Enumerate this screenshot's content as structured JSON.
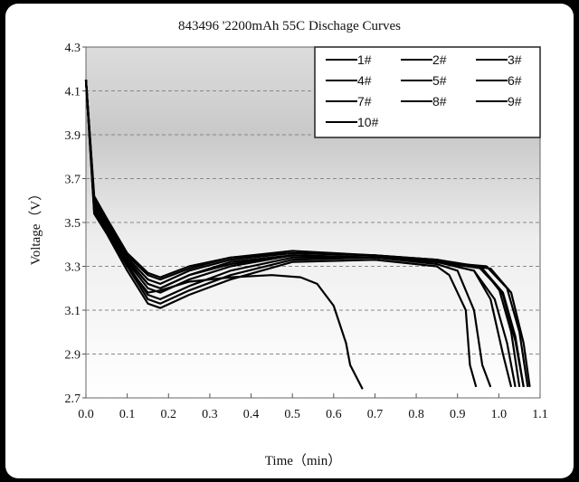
{
  "chart_data": {
    "type": "line",
    "title": "843496 '2200mAh 55C Dischage Curves",
    "xlabel": "Time（min）",
    "ylabel": "Voltage（V）",
    "xlim": [
      0,
      1.1
    ],
    "ylim": [
      2.7,
      4.3
    ],
    "xticks": [
      "0.0",
      "0.1",
      "0.2",
      "0.3",
      "0.4",
      "0.5",
      "0.6",
      "0.7",
      "0.8",
      "0.9",
      "1.0",
      "1.1"
    ],
    "yticks": [
      "2.7",
      "2.9",
      "3.1",
      "3.3",
      "3.5",
      "3.7",
      "3.9",
      "4.1",
      "4.3"
    ],
    "grid": "horizontal dashed",
    "legend_placement": "top-right",
    "line_color": "#000000",
    "series": [
      {
        "name": "1#",
        "points": [
          [
            0,
            4.15
          ],
          [
            0.02,
            3.62
          ],
          [
            0.05,
            3.52
          ],
          [
            0.1,
            3.36
          ],
          [
            0.15,
            3.27
          ],
          [
            0.18,
            3.25
          ],
          [
            0.25,
            3.3
          ],
          [
            0.35,
            3.34
          ],
          [
            0.5,
            3.37
          ],
          [
            0.7,
            3.35
          ],
          [
            0.85,
            3.33
          ],
          [
            0.95,
            3.3
          ],
          [
            1.0,
            3.2
          ],
          [
            1.03,
            3.0
          ],
          [
            1.05,
            2.75
          ]
        ]
      },
      {
        "name": "2#",
        "points": [
          [
            0,
            4.15
          ],
          [
            0.02,
            3.6
          ],
          [
            0.05,
            3.5
          ],
          [
            0.1,
            3.34
          ],
          [
            0.15,
            3.24
          ],
          [
            0.18,
            3.22
          ],
          [
            0.25,
            3.28
          ],
          [
            0.35,
            3.33
          ],
          [
            0.5,
            3.36
          ],
          [
            0.7,
            3.35
          ],
          [
            0.85,
            3.33
          ],
          [
            0.96,
            3.29
          ],
          [
            1.01,
            3.18
          ],
          [
            1.04,
            2.98
          ],
          [
            1.06,
            2.75
          ]
        ]
      },
      {
        "name": "3#",
        "points": [
          [
            0,
            4.15
          ],
          [
            0.02,
            3.58
          ],
          [
            0.05,
            3.49
          ],
          [
            0.1,
            3.33
          ],
          [
            0.15,
            3.22
          ],
          [
            0.18,
            3.2
          ],
          [
            0.25,
            3.26
          ],
          [
            0.35,
            3.31
          ],
          [
            0.5,
            3.35
          ],
          [
            0.7,
            3.34
          ],
          [
            0.85,
            3.32
          ],
          [
            0.94,
            3.28
          ],
          [
            0.99,
            3.15
          ],
          [
            1.02,
            2.95
          ],
          [
            1.04,
            2.75
          ]
        ]
      },
      {
        "name": "4#",
        "points": [
          [
            0,
            4.15
          ],
          [
            0.02,
            3.57
          ],
          [
            0.05,
            3.48
          ],
          [
            0.1,
            3.32
          ],
          [
            0.15,
            3.2
          ],
          [
            0.18,
            3.18
          ],
          [
            0.25,
            3.24
          ],
          [
            0.35,
            3.3
          ],
          [
            0.5,
            3.35
          ],
          [
            0.7,
            3.34
          ],
          [
            0.85,
            3.32
          ],
          [
            0.97,
            3.3
          ],
          [
            1.02,
            3.2
          ],
          [
            1.05,
            3.0
          ],
          [
            1.07,
            2.75
          ]
        ]
      },
      {
        "name": "5#",
        "points": [
          [
            0,
            4.15
          ],
          [
            0.02,
            3.56
          ],
          [
            0.05,
            3.47
          ],
          [
            0.1,
            3.31
          ],
          [
            0.15,
            3.17
          ],
          [
            0.18,
            3.15
          ],
          [
            0.25,
            3.21
          ],
          [
            0.35,
            3.28
          ],
          [
            0.5,
            3.34
          ],
          [
            0.7,
            3.34
          ],
          [
            0.85,
            3.32
          ],
          [
            0.98,
            3.29
          ],
          [
            1.03,
            3.18
          ],
          [
            1.06,
            2.95
          ],
          [
            1.075,
            2.75
          ]
        ]
      },
      {
        "name": "6#",
        "points": [
          [
            0,
            4.15
          ],
          [
            0.02,
            3.55
          ],
          [
            0.05,
            3.46
          ],
          [
            0.1,
            3.3
          ],
          [
            0.15,
            3.15
          ],
          [
            0.18,
            3.13
          ],
          [
            0.25,
            3.19
          ],
          [
            0.35,
            3.26
          ],
          [
            0.5,
            3.33
          ],
          [
            0.7,
            3.34
          ],
          [
            0.85,
            3.31
          ],
          [
            0.9,
            3.28
          ],
          [
            0.94,
            3.1
          ],
          [
            0.96,
            2.85
          ],
          [
            0.98,
            2.75
          ]
        ]
      },
      {
        "name": "7#",
        "points": [
          [
            0,
            4.15
          ],
          [
            0.02,
            3.54
          ],
          [
            0.05,
            3.45
          ],
          [
            0.1,
            3.28
          ],
          [
            0.15,
            3.13
          ],
          [
            0.18,
            3.11
          ],
          [
            0.25,
            3.17
          ],
          [
            0.35,
            3.24
          ],
          [
            0.5,
            3.32
          ],
          [
            0.7,
            3.33
          ],
          [
            0.85,
            3.3
          ],
          [
            0.88,
            3.26
          ],
          [
            0.92,
            3.1
          ],
          [
            0.93,
            2.85
          ],
          [
            0.945,
            2.75
          ]
        ]
      },
      {
        "name": "8#",
        "points": [
          [
            0,
            4.15
          ],
          [
            0.02,
            3.61
          ],
          [
            0.05,
            3.51
          ],
          [
            0.1,
            3.35
          ],
          [
            0.15,
            3.26
          ],
          [
            0.18,
            3.24
          ],
          [
            0.25,
            3.29
          ],
          [
            0.35,
            3.34
          ],
          [
            0.5,
            3.36
          ],
          [
            0.7,
            3.35
          ],
          [
            0.85,
            3.32
          ],
          [
            0.94,
            3.28
          ],
          [
            0.98,
            3.15
          ],
          [
            1.01,
            2.9
          ],
          [
            1.03,
            2.75
          ]
        ]
      },
      {
        "name": "9#",
        "points": [
          [
            0,
            4.15
          ],
          [
            0.02,
            3.59
          ],
          [
            0.05,
            3.49
          ],
          [
            0.1,
            3.33
          ],
          [
            0.15,
            3.22
          ],
          [
            0.18,
            3.2
          ],
          [
            0.25,
            3.26
          ],
          [
            0.35,
            3.32
          ],
          [
            0.5,
            3.35
          ],
          [
            0.7,
            3.34
          ],
          [
            0.85,
            3.32
          ],
          [
            0.96,
            3.29
          ],
          [
            1.01,
            3.17
          ],
          [
            1.04,
            2.96
          ],
          [
            1.06,
            2.75
          ]
        ]
      },
      {
        "name": "10#",
        "points": [
          [
            0,
            4.15
          ],
          [
            0.02,
            3.58
          ],
          [
            0.05,
            3.47
          ],
          [
            0.1,
            3.3
          ],
          [
            0.15,
            3.18
          ],
          [
            0.18,
            3.19
          ],
          [
            0.25,
            3.23
          ],
          [
            0.35,
            3.25
          ],
          [
            0.45,
            3.26
          ],
          [
            0.52,
            3.25
          ],
          [
            0.56,
            3.22
          ],
          [
            0.6,
            3.12
          ],
          [
            0.63,
            2.95
          ],
          [
            0.64,
            2.85
          ],
          [
            0.67,
            2.74
          ]
        ]
      }
    ]
  }
}
